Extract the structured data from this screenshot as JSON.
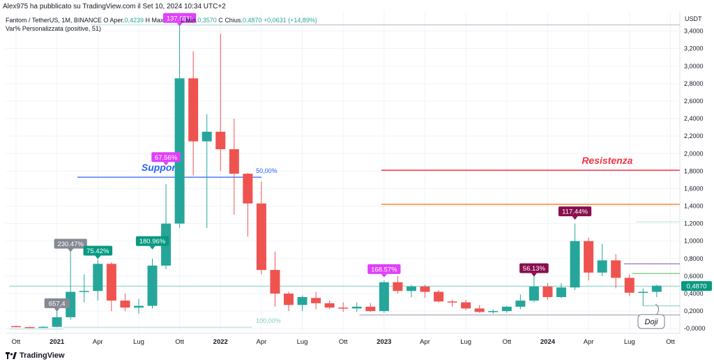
{
  "publisher_line": "Alex975 ha pubblicato su TradingView.com il Set 10, 2024 10:34 UTC+2",
  "legend": {
    "symbol": "Fantom / TetherUS, 1M, BINANCE",
    "o_label": "O",
    "open_label": "Aper.",
    "open_value": "0,4239",
    "high_label": "H",
    "high_text": "Max",
    "low_label": "L",
    "low_text": "Min.",
    "low_value": "0,3570",
    "close_label": "C",
    "close_text": "Chius.",
    "close_value": "0,4870",
    "change_value": "+0,0631 (+14,89%)",
    "indicator": "Var% Personalizzata (positive, 51)"
  },
  "footer": {
    "brand": "TradingView"
  },
  "chart_data": {
    "type": "candlestick",
    "y_axis_unit": "USDT",
    "ylim": [
      -0.07,
      3.58
    ],
    "y_ticks": [
      {
        "v": 3.4,
        "label": "3,4000"
      },
      {
        "v": 3.2,
        "label": "3,2000"
      },
      {
        "v": 3.0,
        "label": "3,0000"
      },
      {
        "v": 2.8,
        "label": "2,8000"
      },
      {
        "v": 2.6,
        "label": "2,6000"
      },
      {
        "v": 2.4,
        "label": "2,4000"
      },
      {
        "v": 2.2,
        "label": "2,2000"
      },
      {
        "v": 2.0,
        "label": "2,0000"
      },
      {
        "v": 1.8,
        "label": "1,8000"
      },
      {
        "v": 1.6,
        "label": "1,6000"
      },
      {
        "v": 1.4,
        "label": "1,4000"
      },
      {
        "v": 1.2,
        "label": "1,2000"
      },
      {
        "v": 1.0,
        "label": "1,0000"
      },
      {
        "v": 0.8,
        "label": "0,8000"
      },
      {
        "v": 0.6,
        "label": "0,6000"
      },
      {
        "v": 0.4,
        "label": "0,4000"
      },
      {
        "v": 0.2,
        "label": "0,2000"
      },
      {
        "v": 0.0,
        "label": "-0,0000"
      }
    ],
    "x_ticks": [
      {
        "i": 0,
        "label": "Ott"
      },
      {
        "i": 3,
        "label": "2021",
        "bold": true
      },
      {
        "i": 6,
        "label": "Apr"
      },
      {
        "i": 9,
        "label": "Lug"
      },
      {
        "i": 12,
        "label": "Ott"
      },
      {
        "i": 15,
        "label": "2022",
        "bold": true
      },
      {
        "i": 18,
        "label": "Apr"
      },
      {
        "i": 21,
        "label": "Lug"
      },
      {
        "i": 24,
        "label": "Ott"
      },
      {
        "i": 27,
        "label": "2023",
        "bold": true
      },
      {
        "i": 30,
        "label": "Apr"
      },
      {
        "i": 33,
        "label": "Lug"
      },
      {
        "i": 36,
        "label": "Ott"
      },
      {
        "i": 39,
        "label": "2024",
        "bold": true
      },
      {
        "i": 42,
        "label": "Apr"
      },
      {
        "i": 45,
        "label": "Lug"
      },
      {
        "i": 48,
        "label": "Ott"
      }
    ],
    "candles": [
      {
        "o": 0.028,
        "h": 0.035,
        "l": 0.016,
        "c": 0.018
      },
      {
        "o": 0.018,
        "h": 0.022,
        "l": 0.014,
        "c": 0.015
      },
      {
        "o": 0.018,
        "h": 0.028,
        "l": 0.014,
        "c": 0.02
      },
      {
        "o": 0.02,
        "h": 0.2,
        "l": 0.015,
        "c": 0.13
      },
      {
        "o": 0.13,
        "h": 0.88,
        "l": 0.1,
        "c": 0.42
      },
      {
        "o": 0.42,
        "h": 0.62,
        "l": 0.3,
        "c": 0.43
      },
      {
        "o": 0.43,
        "h": 0.79,
        "l": 0.32,
        "c": 0.74
      },
      {
        "o": 0.74,
        "h": 0.76,
        "l": 0.2,
        "c": 0.32
      },
      {
        "o": 0.32,
        "h": 0.4,
        "l": 0.2,
        "c": 0.24
      },
      {
        "o": 0.24,
        "h": 0.34,
        "l": 0.17,
        "c": 0.26
      },
      {
        "o": 0.26,
        "h": 0.8,
        "l": 0.23,
        "c": 0.72
      },
      {
        "o": 0.72,
        "h": 1.65,
        "l": 0.68,
        "c": 1.2
      },
      {
        "o": 1.2,
        "h": 3.47,
        "l": 1.15,
        "c": 2.86
      },
      {
        "o": 2.86,
        "h": 3.17,
        "l": 1.75,
        "c": 2.14
      },
      {
        "o": 2.14,
        "h": 2.45,
        "l": 1.15,
        "c": 2.25
      },
      {
        "o": 2.25,
        "h": 3.37,
        "l": 1.8,
        "c": 2.05
      },
      {
        "o": 2.05,
        "h": 2.4,
        "l": 1.3,
        "c": 1.77
      },
      {
        "o": 1.77,
        "h": 1.78,
        "l": 1.05,
        "c": 1.43
      },
      {
        "o": 1.43,
        "h": 1.68,
        "l": 0.62,
        "c": 0.67
      },
      {
        "o": 0.67,
        "h": 0.88,
        "l": 0.25,
        "c": 0.4
      },
      {
        "o": 0.4,
        "h": 0.42,
        "l": 0.2,
        "c": 0.27
      },
      {
        "o": 0.27,
        "h": 0.38,
        "l": 0.2,
        "c": 0.36
      },
      {
        "o": 0.35,
        "h": 0.42,
        "l": 0.22,
        "c": 0.29
      },
      {
        "o": 0.29,
        "h": 0.32,
        "l": 0.22,
        "c": 0.24
      },
      {
        "o": 0.24,
        "h": 0.3,
        "l": 0.19,
        "c": 0.23
      },
      {
        "o": 0.23,
        "h": 0.3,
        "l": 0.19,
        "c": 0.25
      },
      {
        "o": 0.25,
        "h": 0.29,
        "l": 0.19,
        "c": 0.2
      },
      {
        "o": 0.2,
        "h": 0.55,
        "l": 0.18,
        "c": 0.53
      },
      {
        "o": 0.53,
        "h": 0.6,
        "l": 0.4,
        "c": 0.43
      },
      {
        "o": 0.43,
        "h": 0.5,
        "l": 0.36,
        "c": 0.48
      },
      {
        "o": 0.48,
        "h": 0.5,
        "l": 0.35,
        "c": 0.42
      },
      {
        "o": 0.42,
        "h": 0.44,
        "l": 0.3,
        "c": 0.31
      },
      {
        "o": 0.31,
        "h": 0.33,
        "l": 0.25,
        "c": 0.3
      },
      {
        "o": 0.3,
        "h": 0.33,
        "l": 0.21,
        "c": 0.23
      },
      {
        "o": 0.23,
        "h": 0.27,
        "l": 0.18,
        "c": 0.19
      },
      {
        "o": 0.19,
        "h": 0.22,
        "l": 0.17,
        "c": 0.2
      },
      {
        "o": 0.2,
        "h": 0.26,
        "l": 0.18,
        "c": 0.25
      },
      {
        "o": 0.25,
        "h": 0.39,
        "l": 0.22,
        "c": 0.32
      },
      {
        "o": 0.32,
        "h": 0.6,
        "l": 0.3,
        "c": 0.48
      },
      {
        "o": 0.48,
        "h": 0.52,
        "l": 0.33,
        "c": 0.36
      },
      {
        "o": 0.36,
        "h": 0.52,
        "l": 0.35,
        "c": 0.47
      },
      {
        "o": 0.47,
        "h": 1.2,
        "l": 0.44,
        "c": 1.0
      },
      {
        "o": 1.0,
        "h": 1.04,
        "l": 0.55,
        "c": 0.64
      },
      {
        "o": 0.64,
        "h": 0.97,
        "l": 0.6,
        "c": 0.78
      },
      {
        "o": 0.78,
        "h": 0.85,
        "l": 0.46,
        "c": 0.58
      },
      {
        "o": 0.58,
        "h": 0.62,
        "l": 0.37,
        "c": 0.41
      },
      {
        "o": 0.41,
        "h": 0.46,
        "l": 0.26,
        "c": 0.42
      },
      {
        "o": 0.42,
        "h": 0.5,
        "l": 0.36,
        "c": 0.49
      }
    ],
    "pct_labels": [
      {
        "i": 3,
        "label": "657,4",
        "color": "#868993",
        "y": 0.29
      },
      {
        "i": 4,
        "label": "230.47%",
        "color": "#868993",
        "y": 0.97
      },
      {
        "i": 6,
        "label": "75.42%",
        "color": "#089981",
        "y": 0.89
      },
      {
        "i": 10,
        "label": "180.96%",
        "color": "#089981",
        "y": 1.0
      },
      {
        "i": 11,
        "label": "67.56%",
        "color": "#e040fb",
        "y": 1.96
      },
      {
        "i": 12,
        "label": "137.55%",
        "color": "#e040fb",
        "y": 3.55
      },
      {
        "i": 27,
        "label": "168.57%",
        "color": "#e040fb",
        "y": 0.68
      },
      {
        "i": 38,
        "label": "56.13%",
        "color": "#880e4f",
        "y": 0.69
      },
      {
        "i": 41,
        "label": "117.44%",
        "color": "#880e4f",
        "y": 1.34
      }
    ],
    "levels": [
      {
        "v": 1.81,
        "color": "#f23645",
        "width": 1.5,
        "from_i": 26.8,
        "label": "Resistenza",
        "label_i": 41.5
      },
      {
        "v": 1.42,
        "color": "#ff6d00",
        "width": 1.2,
        "from_i": 26.8
      },
      {
        "v": 1.73,
        "color": "#2962ff",
        "width": 1.2,
        "from_i": 4.5,
        "to_i": 18.0,
        "label": "Supporto",
        "label_i": 9.2
      },
      {
        "v": 3.47,
        "color": "#b2b5be",
        "width": 1,
        "from_i": 12.5,
        "to_i": 50
      },
      {
        "v": 3.47,
        "color": "#b2dfdb",
        "width": 1,
        "from_i": 5.5,
        "to_i": 17.3
      },
      {
        "v": 1.22,
        "color": "#b2dfdb",
        "width": 1,
        "from_i": 45.5,
        "to_i": 50
      },
      {
        "v": 0.74,
        "color": "#9575cd",
        "width": 1.2,
        "from_i": 44.6
      },
      {
        "v": 0.63,
        "color": "#66bb6a",
        "width": 1.2,
        "from_i": 45.2
      },
      {
        "v": 0.485,
        "color": "#80cbc4",
        "width": 1,
        "from_i": -0.5,
        "to_i": 50
      },
      {
        "v": 0.26,
        "color": "#80cbc4",
        "width": 1,
        "from_i": 46.0,
        "to_i": 50
      },
      {
        "v": 0.155,
        "color": "#9598a1",
        "width": 1,
        "from_i": 25.2
      },
      {
        "v": 0.015,
        "color": "#b2dfdb",
        "width": 1.2,
        "from_i": 3.5,
        "to_i": 17.3
      },
      {
        "v": -0.005,
        "color": "#b2dfdb",
        "width": 1,
        "from_i": -0.5,
        "to_i": 3.5
      }
    ],
    "fib_labels": [
      {
        "label": "50,00%",
        "color": "#2962ff",
        "i": 17.6,
        "v": 1.78
      },
      {
        "label": "100,00%",
        "color": "#80cbc4",
        "i": 17.6,
        "v": 0.065
      }
    ],
    "price_tag": {
      "label": "0,4870",
      "v": 0.487,
      "color": "#089981"
    },
    "annotation": {
      "label": "Doji",
      "i": 46.6,
      "v": 0.08,
      "target_i": 46.9,
      "target_v": 0.28
    }
  }
}
